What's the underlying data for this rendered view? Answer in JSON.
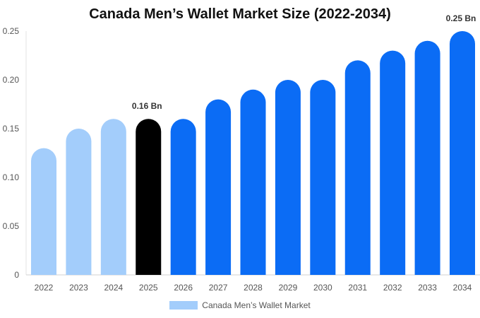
{
  "chart_data": {
    "type": "bar",
    "title": "Canada Men’s Wallet Market Size (2022-2034)",
    "xlabel": "",
    "ylabel": "",
    "categories": [
      "2022",
      "2023",
      "2024",
      "2025",
      "2026",
      "2027",
      "2028",
      "2029",
      "2030",
      "2031",
      "2032",
      "2033",
      "2034"
    ],
    "series": [
      {
        "name": "Canada Men’s Wallet Market",
        "values": [
          0.13,
          0.15,
          0.16,
          0.16,
          0.16,
          0.18,
          0.19,
          0.2,
          0.2,
          0.22,
          0.23,
          0.24,
          0.25
        ]
      }
    ],
    "ylim": [
      0,
      0.25
    ],
    "yticks": [
      "0",
      "0.05",
      "0.10",
      "0.15",
      "0.20",
      "0.25"
    ],
    "grid": false,
    "legend_position": "bottom",
    "bar_colors": [
      "#a3cdfb",
      "#a3cdfb",
      "#a3cdfb",
      "#000000",
      "#0b6cf5",
      "#0b6cf5",
      "#0b6cf5",
      "#0b6cf5",
      "#0b6cf5",
      "#0b6cf5",
      "#0b6cf5",
      "#0b6cf5",
      "#0b6cf5"
    ],
    "legend_color": "#a3cdfb",
    "annotations": [
      {
        "category": "2025",
        "text": "0.16 Bn"
      },
      {
        "category": "2034",
        "text": "0.25 Bn"
      }
    ]
  }
}
